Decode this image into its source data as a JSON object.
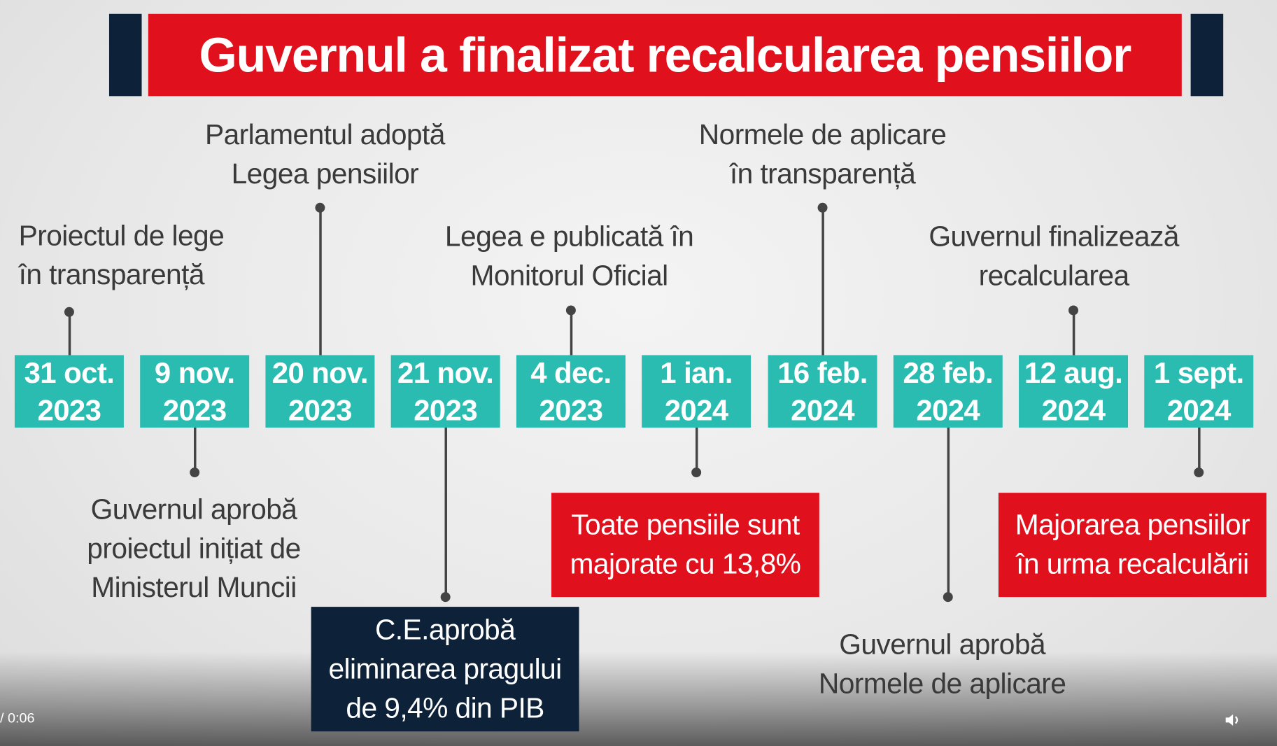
{
  "title": "Guvernul a finalizat recalcularea pensiilor",
  "colors": {
    "title_bg": "#e0101d",
    "accent_navy": "#0d2238",
    "date_bg": "#2bbcb1"
  },
  "dates": [
    {
      "day": "31 oct.",
      "year": "2023"
    },
    {
      "day": "9 nov.",
      "year": "2023"
    },
    {
      "day": "20 nov.",
      "year": "2023"
    },
    {
      "day": "21 nov.",
      "year": "2023"
    },
    {
      "day": "4 dec.",
      "year": "2023"
    },
    {
      "day": "1 ian.",
      "year": "2024"
    },
    {
      "day": "16 feb.",
      "year": "2024"
    },
    {
      "day": "28 feb.",
      "year": "2024"
    },
    {
      "day": "12 aug.",
      "year": "2024"
    },
    {
      "day": "1 sept.",
      "year": "2024"
    }
  ],
  "events": {
    "e0": [
      "Proiectul de lege",
      "în transparență"
    ],
    "e1": [
      "Guvernul aprobă",
      "proiectul inițiat de",
      "Ministerul Muncii"
    ],
    "e2": [
      "Parlamentul adoptă",
      "Legea pensiilor"
    ],
    "e3": [
      "C.E.aprobă",
      "eliminarea pragului",
      "de 9,4% din PIB"
    ],
    "e4": [
      "Legea e publicată în",
      "Monitorul Oficial"
    ],
    "e5": [
      "Toate pensiile sunt",
      "majorate cu 13,8%"
    ],
    "e6": [
      "Normele de aplicare",
      "în transparență"
    ],
    "e7": [
      "Guvernul aprobă",
      "Normele de aplicare"
    ],
    "e8": [
      "Guvernul finalizează",
      "recalcularea"
    ],
    "e9": [
      "Majorarea pensiilor",
      "în urma recalculării"
    ]
  },
  "player": {
    "time": "/ 0:06",
    "volume_icon": "volume-icon"
  }
}
